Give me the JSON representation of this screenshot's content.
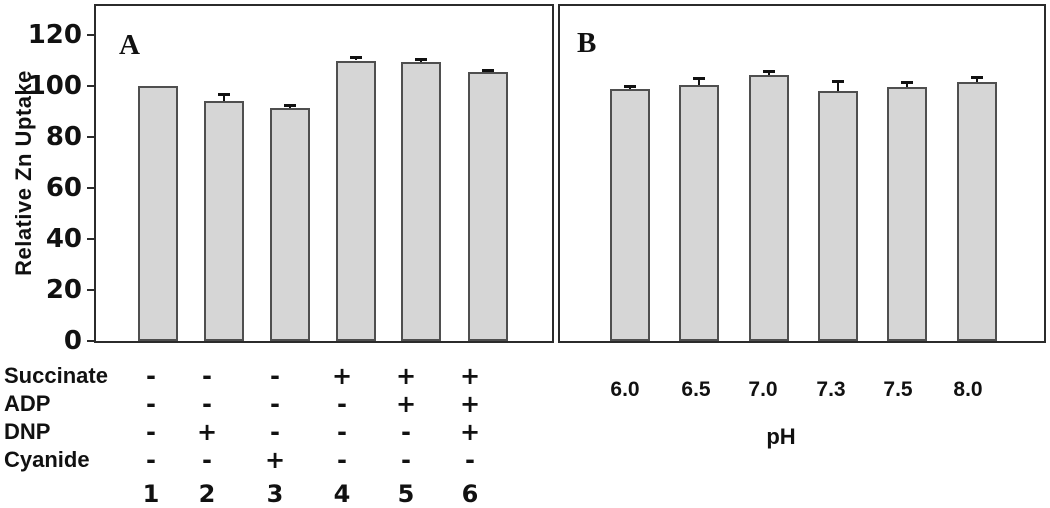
{
  "figure": {
    "background": "#ffffff"
  },
  "colors": {
    "bar_fill": "#d6d6d6",
    "bar_border": "#4f4f4f",
    "frame_border": "#2b2b2b",
    "error_bar": "#111111",
    "text": "#111111"
  },
  "chart_data": [
    {
      "type": "bar",
      "panel": "A",
      "ylabel": "Relative Zn Uptake",
      "yticks": [
        0,
        20,
        40,
        60,
        80,
        100,
        120
      ],
      "ylim": [
        0,
        132
      ],
      "grid": false,
      "legend": "none",
      "categories": [
        "1",
        "2",
        "3",
        "4",
        "5",
        "6"
      ],
      "values": [
        100,
        94,
        91.5,
        110,
        109.5,
        105.5
      ],
      "errors": [
        0,
        3,
        1,
        1.5,
        1,
        0.7
      ],
      "condition_rows": [
        {
          "label": "Succinate",
          "values": [
            "-",
            "-",
            "-",
            "+",
            "+",
            "+"
          ]
        },
        {
          "label": "ADP",
          "values": [
            "-",
            "-",
            "-",
            "-",
            "+",
            "+"
          ]
        },
        {
          "label": "DNP",
          "values": [
            "-",
            "+",
            "-",
            "-",
            "-",
            "+"
          ]
        },
        {
          "label": "Cyanide",
          "values": [
            "-",
            "-",
            "+",
            "-",
            "-",
            "-"
          ]
        }
      ],
      "lane_numbers": [
        "1",
        "2",
        "3",
        "4",
        "5",
        "6"
      ]
    },
    {
      "type": "bar",
      "panel": "B",
      "xlabel": "pH",
      "ylim": [
        0,
        132
      ],
      "grid": false,
      "legend": "none",
      "categories": [
        "6.0",
        "6.5",
        "7.0",
        "7.3",
        "7.5",
        "8.0"
      ],
      "values": [
        99,
        100.5,
        104.5,
        98,
        99.5,
        101.5
      ],
      "errors": [
        1,
        2.5,
        1.5,
        4,
        2,
        2
      ]
    }
  ]
}
